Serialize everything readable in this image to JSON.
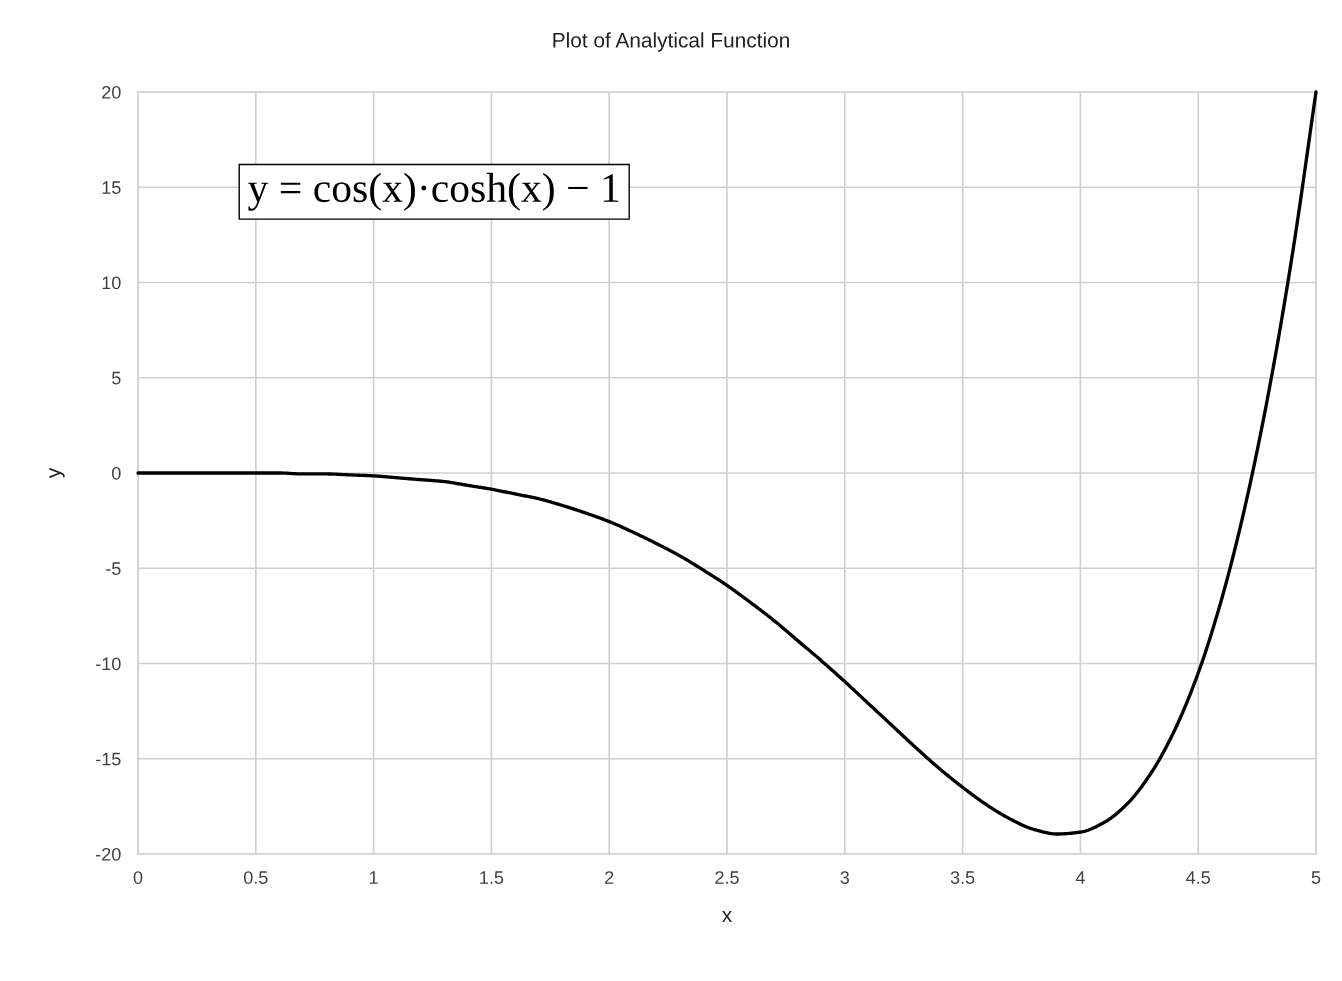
{
  "chart_data": {
    "type": "line",
    "title": "Plot of Analytical Function",
    "xlabel": "x",
    "ylabel": "y",
    "annotations": [
      "y = cos(x)·cosh(x) − 1"
    ],
    "x": [
      0,
      0.1,
      0.2,
      0.3,
      0.4,
      0.5,
      0.6,
      0.7,
      0.8,
      0.9,
      1.0,
      1.1,
      1.2,
      1.3,
      1.4,
      1.5,
      1.6,
      1.7,
      1.8,
      1.9,
      2.0,
      2.1,
      2.2,
      2.3,
      2.4,
      2.5,
      2.6,
      2.7,
      2.8,
      2.9,
      3.0,
      3.1,
      3.2,
      3.3,
      3.4,
      3.5,
      3.6,
      3.7,
      3.8,
      3.9,
      4.0,
      4.1,
      4.2,
      4.3,
      4.4,
      4.5,
      4.6,
      4.7,
      4.8,
      4.9,
      5.0
    ],
    "series": [
      {
        "color": "#000000",
        "values": [
          0.0,
          0.0,
          0.0,
          0.0,
          0.0,
          0.0,
          0.0,
          -0.05,
          -0.05,
          -0.1,
          -0.15,
          -0.25,
          -0.35,
          -0.45,
          -0.65,
          -0.85,
          -1.1,
          -1.35,
          -1.7,
          -2.1,
          -2.55,
          -3.1,
          -3.7,
          -4.35,
          -5.1,
          -5.9,
          -6.8,
          -7.75,
          -8.8,
          -9.85,
          -10.95,
          -12.1,
          -13.25,
          -14.4,
          -15.5,
          -16.5,
          -17.4,
          -18.15,
          -18.7,
          -18.95,
          -18.85,
          -18.35,
          -17.35,
          -15.75,
          -13.5,
          -10.5,
          -6.6,
          -1.7,
          4.3,
          11.5,
          20.0
        ]
      }
    ],
    "xlim": [
      0,
      5
    ],
    "ylim": [
      -20,
      20
    ],
    "xticks": [
      0,
      0.5,
      1,
      1.5,
      2,
      2.5,
      3,
      3.5,
      4,
      4.5,
      5
    ],
    "yticks": [
      -20,
      -15,
      -10,
      -5,
      0,
      5,
      10,
      15,
      20
    ],
    "grid": true,
    "marker": "none",
    "line_style": "solid"
  }
}
